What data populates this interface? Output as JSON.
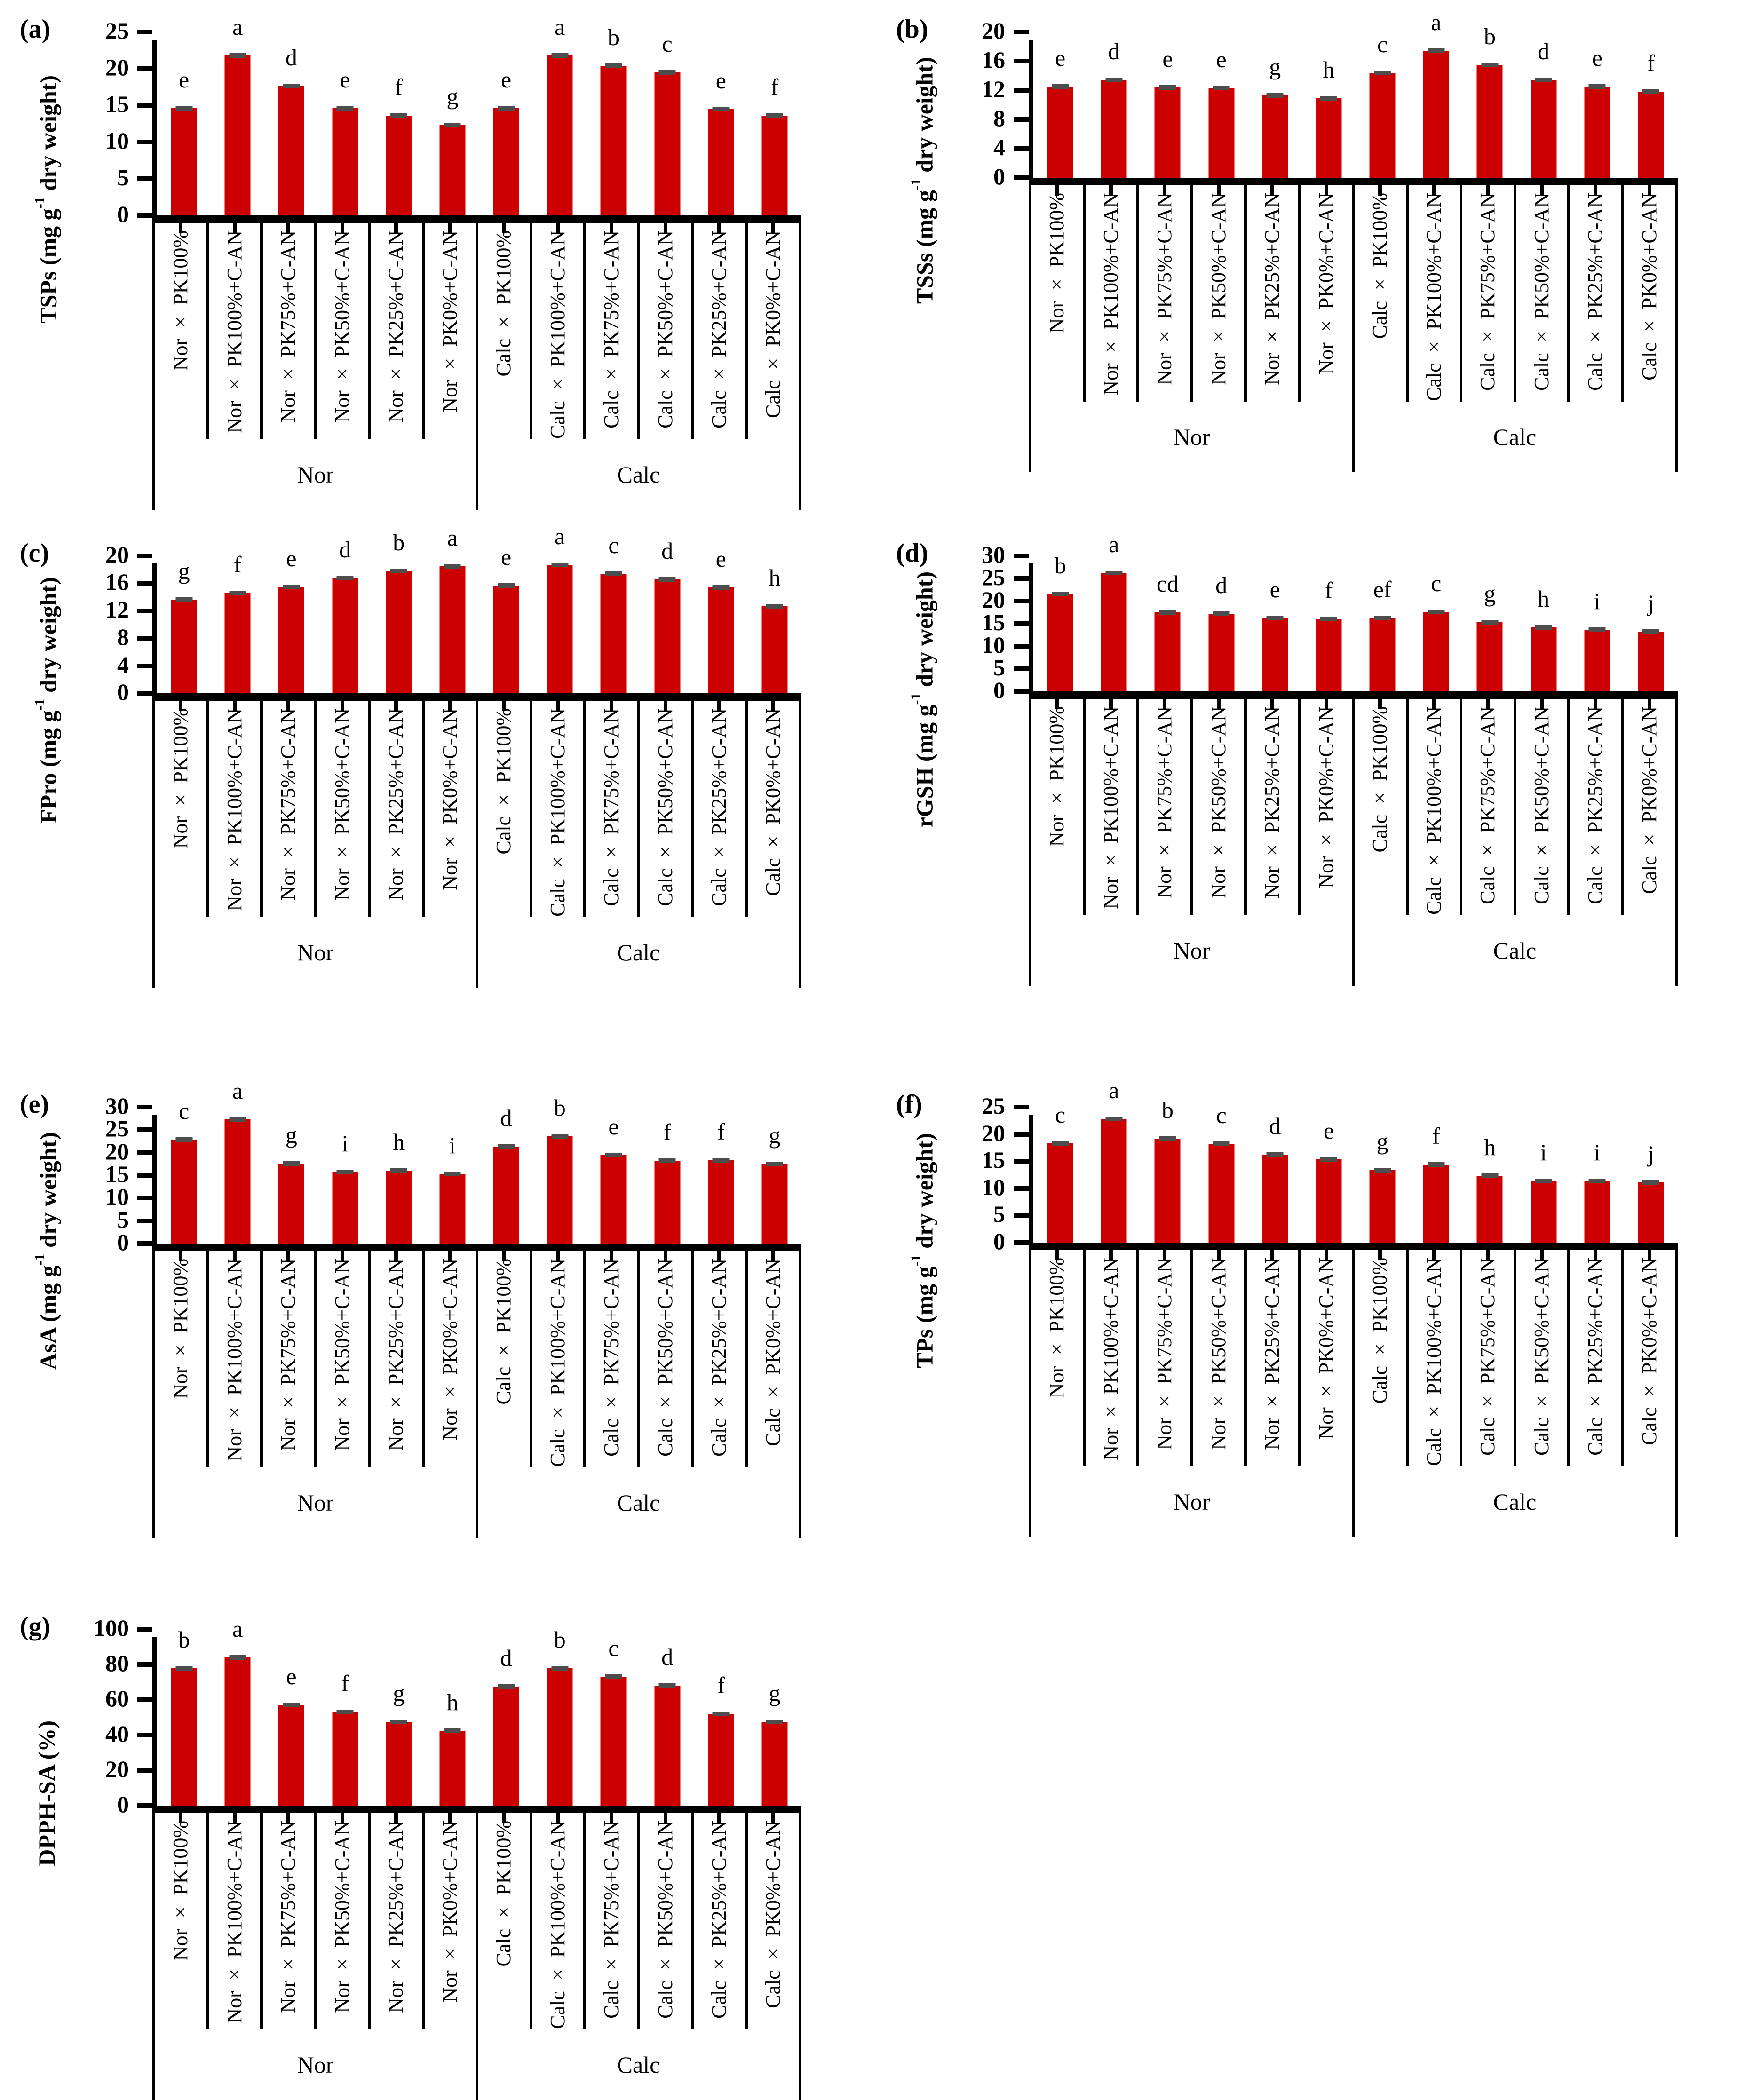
{
  "figure": {
    "description_visible_text_only": true,
    "bar_color": "#cc0000",
    "error_cap_color": "#4d4d4d"
  },
  "chart_data": [
    {
      "panel": "(a)",
      "type": "bar",
      "ylabel": "TSPs (mg g⁻¹ dry weight)",
      "ylim": [
        0,
        25
      ],
      "yticks": [
        0,
        5,
        10,
        15,
        20,
        25
      ],
      "categories": [
        "Nor × PK100%",
        "Nor × PK100%+C-AN",
        "Nor × PK75%+C-AN",
        "Nor × PK50%+C-AN",
        "Nor × PK25%+C-AN",
        "Nor × PK0%+C-AN",
        "Calc × PK100%",
        "Calc × PK100%+C-AN",
        "Calc × PK75%+C-AN",
        "Calc × PK50%+C-AN",
        "Calc × PK25%+C-AN",
        "Calc × PK0%+C-AN"
      ],
      "values": [
        14.6,
        21.8,
        17.6,
        14.6,
        13.6,
        12.3,
        14.6,
        21.8,
        20.4,
        19.5,
        14.5,
        13.6
      ],
      "sig_letters": [
        "e",
        "a",
        "d",
        "e",
        "f",
        "g",
        "e",
        "a",
        "b",
        "c",
        "e",
        "f"
      ],
      "groups": [
        {
          "label": "Nor",
          "span": 6
        },
        {
          "label": "Calc",
          "span": 6
        }
      ],
      "bar_color": "#cc0000",
      "error_bars": true,
      "grid": false,
      "legend": false
    },
    {
      "panel": "(b)",
      "type": "bar",
      "ylabel": "TSSs (mg g⁻¹ dry weight)",
      "ylim": [
        0,
        20
      ],
      "yticks": [
        0,
        4,
        8,
        12,
        16,
        20
      ],
      "categories": [
        "Nor × PK100%",
        "Nor × PK100%+C-AN",
        "Nor × PK75%+C-AN",
        "Nor × PK50%+C-AN",
        "Nor × PK25%+C-AN",
        "Nor × PK0%+C-AN",
        "Calc × PK100%",
        "Calc × PK100%+C-AN",
        "Calc × PK75%+C-AN",
        "Calc × PK50%+C-AN",
        "Calc × PK25%+C-AN",
        "Calc × PK0%+C-AN"
      ],
      "values": [
        12.5,
        13.4,
        12.4,
        12.3,
        11.3,
        10.9,
        14.4,
        17.4,
        15.5,
        13.4,
        12.5,
        11.8
      ],
      "sig_letters": [
        "e",
        "d",
        "e",
        "e",
        "g",
        "h",
        "c",
        "a",
        "b",
        "d",
        "e",
        "f"
      ],
      "groups": [
        {
          "label": "Nor",
          "span": 6
        },
        {
          "label": "Calc",
          "span": 6
        }
      ],
      "bar_color": "#cc0000",
      "error_bars": true,
      "grid": false,
      "legend": false
    },
    {
      "panel": "(c)",
      "type": "bar",
      "ylabel": "FPro (mg g⁻¹ dry weight)",
      "ylim": [
        0,
        20
      ],
      "yticks": [
        0,
        4,
        8,
        12,
        16,
        20
      ],
      "categories": [
        "Nor × PK100%",
        "Nor × PK100%+C-AN",
        "Nor × PK75%+C-AN",
        "Nor × PK50%+C-AN",
        "Nor × PK25%+C-AN",
        "Nor × PK0%+C-AN",
        "Calc × PK100%",
        "Calc × PK100%+C-AN",
        "Calc × PK75%+C-AN",
        "Calc × PK50%+C-AN",
        "Calc × PK25%+C-AN",
        "Calc × PK0%+C-AN"
      ],
      "values": [
        13.6,
        14.6,
        15.5,
        16.8,
        17.8,
        18.5,
        15.7,
        18.7,
        17.4,
        16.6,
        15.4,
        12.7
      ],
      "sig_letters": [
        "g",
        "f",
        "e",
        "d",
        "b",
        "a",
        "e",
        "a",
        "c",
        "d",
        "e",
        "h"
      ],
      "groups": [
        {
          "label": "Nor",
          "span": 6
        },
        {
          "label": "Calc",
          "span": 6
        }
      ],
      "bar_color": "#cc0000",
      "error_bars": true,
      "grid": false,
      "legend": false
    },
    {
      "panel": "(d)",
      "type": "bar",
      "ylabel": "rGSH (mg g⁻¹ dry weight)",
      "ylim": [
        0,
        30
      ],
      "yticks": [
        0,
        5,
        10,
        15,
        20,
        25,
        30
      ],
      "categories": [
        "Nor × PK100%",
        "Nor × PK100%+C-AN",
        "Nor × PK75%+C-AN",
        "Nor × PK50%+C-AN",
        "Nor × PK25%+C-AN",
        "Nor × PK0%+C-AN",
        "Calc × PK100%",
        "Calc × PK100%+C-AN",
        "Calc × PK75%+C-AN",
        "Calc × PK50%+C-AN",
        "Calc × PK25%+C-AN",
        "Calc × PK0%+C-AN"
      ],
      "values": [
        21.6,
        26.3,
        17.5,
        17.2,
        16.3,
        16.0,
        16.2,
        17.6,
        15.3,
        14.2,
        13.6,
        13.2
      ],
      "sig_letters": [
        "b",
        "a",
        "cd",
        "d",
        "e",
        "f",
        "ef",
        "c",
        "g",
        "h",
        "i",
        "j"
      ],
      "groups": [
        {
          "label": "Nor",
          "span": 6
        },
        {
          "label": "Calc",
          "span": 6
        }
      ],
      "bar_color": "#cc0000",
      "error_bars": true,
      "grid": false,
      "legend": false
    },
    {
      "panel": "(e)",
      "type": "bar",
      "ylabel": "AsA (mg g⁻¹ dry weight)",
      "ylim": [
        0,
        30
      ],
      "yticks": [
        0,
        5,
        10,
        15,
        20,
        25,
        30
      ],
      "categories": [
        "Nor × PK100%",
        "Nor × PK100%+C-AN",
        "Nor × PK75%+C-AN",
        "Nor × PK50%+C-AN",
        "Nor × PK25%+C-AN",
        "Nor × PK0%+C-AN",
        "Calc × PK100%",
        "Calc × PK100%+C-AN",
        "Calc × PK75%+C-AN",
        "Calc × PK50%+C-AN",
        "Calc × PK25%+C-AN",
        "Calc × PK0%+C-AN"
      ],
      "values": [
        22.9,
        27.3,
        17.6,
        15.7,
        16.0,
        15.3,
        21.3,
        23.6,
        19.5,
        18.2,
        18.3,
        17.5
      ],
      "sig_letters": [
        "c",
        "a",
        "g",
        "i",
        "h",
        "i",
        "d",
        "b",
        "e",
        "f",
        "f",
        "g"
      ],
      "groups": [
        {
          "label": "Nor",
          "span": 6
        },
        {
          "label": "Calc",
          "span": 6
        }
      ],
      "bar_color": "#cc0000",
      "error_bars": true,
      "grid": false,
      "legend": false
    },
    {
      "panel": "(f)",
      "type": "bar",
      "ylabel": "TPs (mg g⁻¹ dry weight)",
      "ylim": [
        0,
        25
      ],
      "yticks": [
        0,
        5,
        10,
        15,
        20,
        25
      ],
      "categories": [
        "Nor × PK100%",
        "Nor × PK100%+C-AN",
        "Nor × PK75%+C-AN",
        "Nor × PK50%+C-AN",
        "Nor × PK25%+C-AN",
        "Nor × PK0%+C-AN",
        "Calc × PK100%",
        "Calc × PK100%+C-AN",
        "Calc × PK75%+C-AN",
        "Calc × PK50%+C-AN",
        "Calc × PK25%+C-AN",
        "Calc × PK0%+C-AN"
      ],
      "values": [
        18.3,
        22.8,
        19.2,
        18.2,
        16.2,
        15.4,
        13.4,
        14.4,
        12.3,
        11.4,
        11.4,
        11.1
      ],
      "sig_letters": [
        "c",
        "a",
        "b",
        "c",
        "d",
        "e",
        "g",
        "f",
        "h",
        "i",
        "i",
        "j"
      ],
      "groups": [
        {
          "label": "Nor",
          "span": 6
        },
        {
          "label": "Calc",
          "span": 6
        }
      ],
      "bar_color": "#cc0000",
      "error_bars": true,
      "grid": false,
      "legend": false
    },
    {
      "panel": "(g)",
      "type": "bar",
      "ylabel": "DPPH-SA (%)",
      "ylim": [
        0,
        100
      ],
      "yticks": [
        0,
        20,
        40,
        60,
        80,
        100
      ],
      "categories": [
        "Nor × PK100%",
        "Nor × PK100%+C-AN",
        "Nor × PK75%+C-AN",
        "Nor × PK50%+C-AN",
        "Nor × PK25%+C-AN",
        "Nor × PK0%+C-AN",
        "Calc × PK100%",
        "Calc × PK100%+C-AN",
        "Calc × PK75%+C-AN",
        "Calc × PK50%+C-AN",
        "Calc × PK25%+C-AN",
        "Calc × PK0%+C-AN"
      ],
      "values": [
        78,
        84,
        57,
        53,
        47.5,
        42.5,
        67.5,
        78,
        73,
        68,
        52,
        47.5
      ],
      "sig_letters": [
        "b",
        "a",
        "e",
        "f",
        "g",
        "h",
        "d",
        "b",
        "c",
        "d",
        "f",
        "g"
      ],
      "groups": [
        {
          "label": "Nor",
          "span": 6
        },
        {
          "label": "Calc",
          "span": 6
        }
      ],
      "bar_color": "#cc0000",
      "error_bars": true,
      "grid": false,
      "legend": false
    }
  ]
}
